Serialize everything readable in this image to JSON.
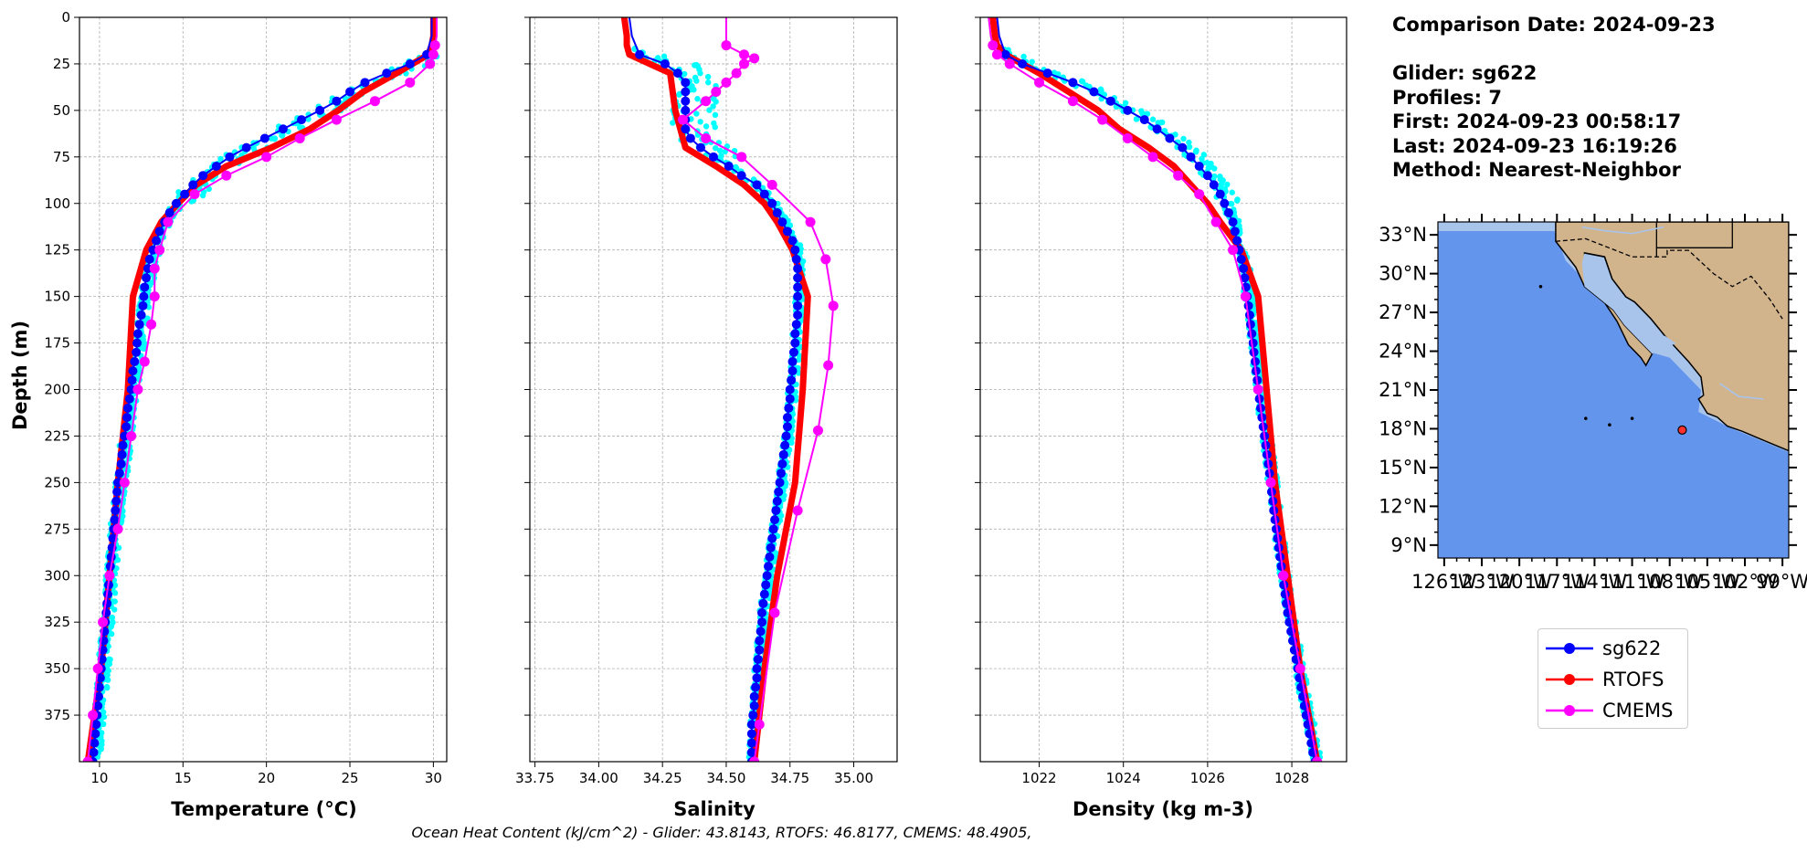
{
  "info": {
    "comparison_date": "Comparison Date: 2024-09-23",
    "glider": "Glider: sg622",
    "profiles": "Profiles: 7",
    "first": "First: 2024-09-23 00:58:17",
    "last": "Last: 2024-09-23 16:19:26",
    "method": "Method: Nearest-Neighbor"
  },
  "footer": "Ocean Heat Content (kJ/cm^2) - Glider: 43.8143,  RTOFS: 46.8177,  CMEMS: 48.4905,",
  "legend": [
    {
      "name": "sg622",
      "color": "#0000ff"
    },
    {
      "name": "RTOFS",
      "color": "#ff0000"
    },
    {
      "name": "CMEMS",
      "color": "#ff00ff"
    }
  ],
  "colors": {
    "glider_profiles": "#00ffff",
    "grid": "#b0b0b0",
    "ocean": "#6495ed",
    "shelf": "#a8c4ea",
    "land": "#d2b48c"
  },
  "chart_data": [
    {
      "type": "line",
      "xlabel": "Temperature (°C)",
      "ylabel": "Depth (m)",
      "xlim": [
        8.8,
        30.8
      ],
      "ylim": [
        400,
        0
      ],
      "xticks": [
        10,
        15,
        20,
        25,
        30
      ],
      "yticks": [
        0,
        25,
        50,
        75,
        100,
        125,
        150,
        175,
        200,
        225,
        250,
        275,
        300,
        325,
        350,
        375
      ],
      "grid": true,
      "series": [
        {
          "name": "sg622",
          "depth": [
            0,
            10,
            20,
            25,
            30,
            35,
            40,
            45,
            50,
            55,
            60,
            65,
            70,
            75,
            80,
            85,
            90,
            95,
            100,
            105,
            110,
            115,
            120,
            125,
            130,
            135,
            140,
            145,
            150,
            155,
            160,
            165,
            170,
            175,
            180,
            185,
            190,
            195,
            200,
            205,
            210,
            215,
            220,
            225,
            230,
            235,
            240,
            245,
            250,
            255,
            260,
            265,
            270,
            275,
            280,
            285,
            290,
            295,
            300,
            305,
            310,
            315,
            320,
            325,
            330,
            335,
            340,
            345,
            350,
            355,
            360,
            365,
            370,
            375,
            380,
            385,
            390,
            395,
            400
          ],
          "values": [
            29.9,
            29.9,
            29.6,
            28.6,
            27.2,
            25.9,
            25.0,
            24.2,
            23.2,
            22.1,
            21.0,
            19.9,
            18.8,
            17.8,
            17.0,
            16.2,
            15.6,
            15.1,
            14.6,
            14.2,
            13.9,
            13.6,
            13.4,
            13.2,
            13.0,
            12.9,
            12.8,
            12.7,
            12.65,
            12.6,
            12.5,
            12.4,
            12.3,
            12.25,
            12.2,
            12.1,
            12.0,
            11.95,
            11.9,
            11.8,
            11.7,
            11.65,
            11.6,
            11.5,
            11.4,
            11.35,
            11.3,
            11.2,
            11.1,
            11.05,
            11.0,
            10.95,
            10.9,
            10.85,
            10.8,
            10.75,
            10.7,
            10.65,
            10.6,
            10.55,
            10.5,
            10.45,
            10.4,
            10.35,
            10.3,
            10.25,
            10.2,
            10.15,
            10.1,
            10.05,
            10.0,
            9.95,
            9.9,
            9.85,
            9.8,
            9.75,
            9.7,
            9.65,
            9.6
          ]
        },
        {
          "name": "RTOFS",
          "depth": [
            0,
            10,
            15,
            20,
            30,
            40,
            50,
            60,
            70,
            80,
            90,
            100,
            110,
            125,
            150,
            200,
            250,
            300,
            350,
            400
          ],
          "values": [
            30.0,
            30.0,
            29.9,
            29.7,
            27.8,
            25.8,
            24.3,
            22.6,
            20.3,
            17.6,
            15.8,
            14.7,
            13.7,
            12.8,
            12.0,
            11.7,
            11.1,
            10.6,
            10.1,
            9.3
          ]
        },
        {
          "name": "CMEMS",
          "depth": [
            0,
            10,
            15,
            20,
            25,
            35,
            45,
            55,
            65,
            75,
            85,
            95,
            110,
            125,
            135,
            150,
            165,
            185,
            200,
            225,
            250,
            275,
            300,
            325,
            350,
            375,
            400
          ],
          "values": [
            30.2,
            30.2,
            30.1,
            30.0,
            29.8,
            28.6,
            26.5,
            24.2,
            22.0,
            20.0,
            17.6,
            15.7,
            14.1,
            13.6,
            13.3,
            13.3,
            13.1,
            12.7,
            12.3,
            11.9,
            11.5,
            11.1,
            10.6,
            10.2,
            9.9,
            9.6,
            9.3
          ]
        }
      ]
    },
    {
      "type": "line",
      "xlabel": "Salinity",
      "xlim": [
        33.73,
        35.17
      ],
      "ylim": [
        400,
        0
      ],
      "xticks": [
        "33.75",
        "34.00",
        "34.25",
        "34.50",
        "34.75",
        "35.00"
      ],
      "grid": true,
      "series": [
        {
          "name": "sg622",
          "depth": [
            0,
            10,
            20,
            25,
            30,
            35,
            40,
            45,
            50,
            55,
            60,
            65,
            70,
            75,
            80,
            85,
            90,
            95,
            100,
            105,
            110,
            115,
            120,
            125,
            130,
            135,
            140,
            145,
            150,
            155,
            160,
            165,
            170,
            175,
            180,
            185,
            190,
            195,
            200,
            205,
            210,
            215,
            220,
            225,
            230,
            235,
            240,
            245,
            250,
            255,
            260,
            265,
            270,
            275,
            280,
            285,
            290,
            295,
            300,
            305,
            310,
            315,
            320,
            325,
            330,
            335,
            340,
            345,
            350,
            355,
            360,
            365,
            370,
            375,
            380,
            385,
            390,
            395,
            400
          ],
          "values": [
            34.12,
            34.13,
            34.16,
            34.26,
            34.31,
            34.34,
            34.34,
            34.34,
            34.34,
            34.34,
            34.34,
            34.36,
            34.4,
            34.45,
            34.51,
            34.56,
            34.62,
            34.65,
            34.68,
            34.7,
            34.72,
            34.74,
            34.76,
            34.77,
            34.775,
            34.78,
            34.78,
            34.78,
            34.78,
            34.78,
            34.78,
            34.775,
            34.77,
            34.77,
            34.765,
            34.76,
            34.76,
            34.755,
            34.75,
            34.75,
            34.745,
            34.74,
            34.74,
            34.735,
            34.73,
            34.725,
            34.72,
            34.715,
            34.71,
            34.705,
            34.7,
            34.695,
            34.69,
            34.685,
            34.68,
            34.675,
            34.67,
            34.665,
            34.66,
            34.655,
            34.65,
            34.645,
            34.64,
            34.64,
            34.635,
            34.63,
            34.63,
            34.625,
            34.62,
            34.62,
            34.615,
            34.61,
            34.61,
            34.605,
            34.6,
            34.6,
            34.6,
            34.6,
            34.6
          ]
        },
        {
          "name": "RTOFS",
          "depth": [
            0,
            10,
            15,
            20,
            25,
            30,
            50,
            70,
            80,
            90,
            100,
            110,
            125,
            150,
            200,
            250,
            300,
            350,
            400
          ],
          "values": [
            34.1,
            34.11,
            34.11,
            34.12,
            34.2,
            34.28,
            34.3,
            34.34,
            34.46,
            34.57,
            34.65,
            34.7,
            34.76,
            34.82,
            34.8,
            34.77,
            34.7,
            34.65,
            34.61
          ]
        },
        {
          "name": "CMEMS",
          "depth": [
            0,
            10,
            15,
            20,
            22,
            25,
            30,
            35,
            40,
            45,
            55,
            65,
            75,
            90,
            110,
            130,
            155,
            187,
            222,
            265,
            320,
            380,
            400
          ],
          "values": [
            34.5,
            34.5,
            34.5,
            34.57,
            34.61,
            34.57,
            34.54,
            34.5,
            34.46,
            34.42,
            34.33,
            34.42,
            34.56,
            34.68,
            34.83,
            34.89,
            34.92,
            34.9,
            34.86,
            34.78,
            34.69,
            34.63,
            34.61
          ]
        }
      ]
    },
    {
      "type": "line",
      "xlabel": "Density (kg m-3)",
      "xlim": [
        1020.6,
        1029.3
      ],
      "ylim": [
        400,
        0
      ],
      "xticks": [
        1022,
        1024,
        1026,
        1028
      ],
      "grid": true,
      "series": [
        {
          "name": "sg622",
          "depth": [
            0,
            10,
            20,
            25,
            30,
            35,
            40,
            45,
            50,
            55,
            60,
            65,
            70,
            75,
            80,
            85,
            90,
            95,
            100,
            105,
            110,
            115,
            120,
            125,
            130,
            135,
            140,
            145,
            150,
            155,
            160,
            165,
            170,
            175,
            180,
            185,
            190,
            195,
            200,
            205,
            210,
            215,
            220,
            225,
            230,
            235,
            240,
            245,
            250,
            255,
            260,
            265,
            270,
            275,
            280,
            285,
            290,
            295,
            300,
            305,
            310,
            315,
            320,
            325,
            330,
            335,
            340,
            345,
            350,
            355,
            360,
            365,
            370,
            375,
            380,
            385,
            390,
            395,
            400
          ],
          "values": [
            1021.0,
            1021.05,
            1021.2,
            1021.6,
            1022.2,
            1022.8,
            1023.3,
            1023.7,
            1024.1,
            1024.5,
            1024.8,
            1025.1,
            1025.4,
            1025.6,
            1025.8,
            1026.0,
            1026.15,
            1026.3,
            1026.4,
            1026.5,
            1026.6,
            1026.65,
            1026.7,
            1026.75,
            1026.8,
            1026.85,
            1026.88,
            1026.91,
            1026.94,
            1026.97,
            1027.0,
            1027.02,
            1027.05,
            1027.08,
            1027.1,
            1027.13,
            1027.15,
            1027.18,
            1027.2,
            1027.23,
            1027.26,
            1027.29,
            1027.32,
            1027.35,
            1027.38,
            1027.41,
            1027.44,
            1027.47,
            1027.5,
            1027.52,
            1027.55,
            1027.57,
            1027.6,
            1027.63,
            1027.66,
            1027.69,
            1027.72,
            1027.75,
            1027.78,
            1027.81,
            1027.84,
            1027.87,
            1027.9,
            1027.94,
            1027.98,
            1028.02,
            1028.06,
            1028.1,
            1028.14,
            1028.18,
            1028.22,
            1028.26,
            1028.3,
            1028.34,
            1028.38,
            1028.42,
            1028.46,
            1028.5,
            1028.55
          ]
        },
        {
          "name": "RTOFS",
          "depth": [
            0,
            10,
            15,
            20,
            30,
            40,
            50,
            60,
            70,
            80,
            90,
            100,
            110,
            125,
            150,
            200,
            250,
            300,
            350,
            400
          ],
          "values": [
            1020.9,
            1020.95,
            1021.0,
            1021.2,
            1022.0,
            1022.7,
            1023.4,
            1023.9,
            1024.6,
            1025.2,
            1025.6,
            1026.0,
            1026.3,
            1026.8,
            1027.2,
            1027.4,
            1027.6,
            1027.9,
            1028.2,
            1028.6
          ]
        },
        {
          "name": "CMEMS",
          "depth": [
            0,
            10,
            15,
            20,
            25,
            35,
            45,
            55,
            65,
            75,
            85,
            95,
            110,
            125,
            150,
            200,
            250,
            300,
            350,
            400
          ],
          "values": [
            1020.8,
            1020.85,
            1020.9,
            1021.0,
            1021.3,
            1022.0,
            1022.8,
            1023.5,
            1024.1,
            1024.7,
            1025.3,
            1025.8,
            1026.2,
            1026.6,
            1026.9,
            1027.2,
            1027.5,
            1027.8,
            1028.2,
            1028.6
          ]
        }
      ]
    },
    {
      "type": "map",
      "lat_ticks": [
        "33°N",
        "30°N",
        "27°N",
        "24°N",
        "21°N",
        "18°N",
        "15°N",
        "12°N",
        "9°N"
      ],
      "lon_ticks": [
        "126°W",
        "123°W",
        "120°W",
        "117°W",
        "114°W",
        "111°W",
        "108°W",
        "105°W",
        "102°W",
        "99°W"
      ],
      "lon_range": [
        -126.5,
        -98.5
      ],
      "lat_range": [
        8,
        34
      ],
      "marker": {
        "lon": -107,
        "lat": 17.9
      }
    }
  ]
}
